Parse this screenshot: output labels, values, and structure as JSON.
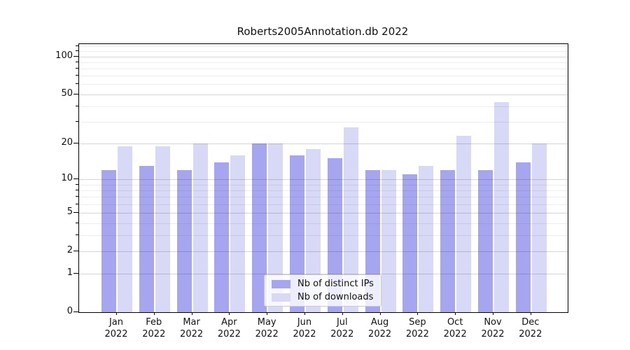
{
  "chart_data": {
    "type": "bar",
    "title": "Roberts2005Annotation.db 2022",
    "categories": [
      "Jan 2022",
      "Feb 2022",
      "Mar 2022",
      "Apr 2022",
      "May 2022",
      "Jun 2022",
      "Jul 2022",
      "Aug 2022",
      "Sep 2022",
      "Oct 2022",
      "Nov 2022",
      "Dec 2022"
    ],
    "series": [
      {
        "name": "Nb of distinct IPs",
        "color": "#a6a6f0",
        "values": [
          12,
          13,
          12,
          14,
          20,
          16,
          15,
          12,
          11,
          12,
          12,
          14
        ]
      },
      {
        "name": "Nb of downloads",
        "color": "#d8d8f7",
        "values": [
          19,
          19,
          20,
          16,
          20,
          18,
          27,
          12,
          13,
          23,
          43,
          20
        ]
      }
    ],
    "xlabel": "",
    "ylabel": "",
    "yscale": "log10(1+v)",
    "yticks": [
      0,
      1,
      2,
      5,
      10,
      20,
      50,
      100
    ],
    "yticks_minor": [
      3,
      4,
      6,
      7,
      8,
      9,
      30,
      40,
      60,
      70,
      80,
      90,
      110,
      120
    ],
    "ylim": [
      0,
      125
    ],
    "grid": true,
    "grid_on_top": true,
    "legend_position": "lower center"
  }
}
